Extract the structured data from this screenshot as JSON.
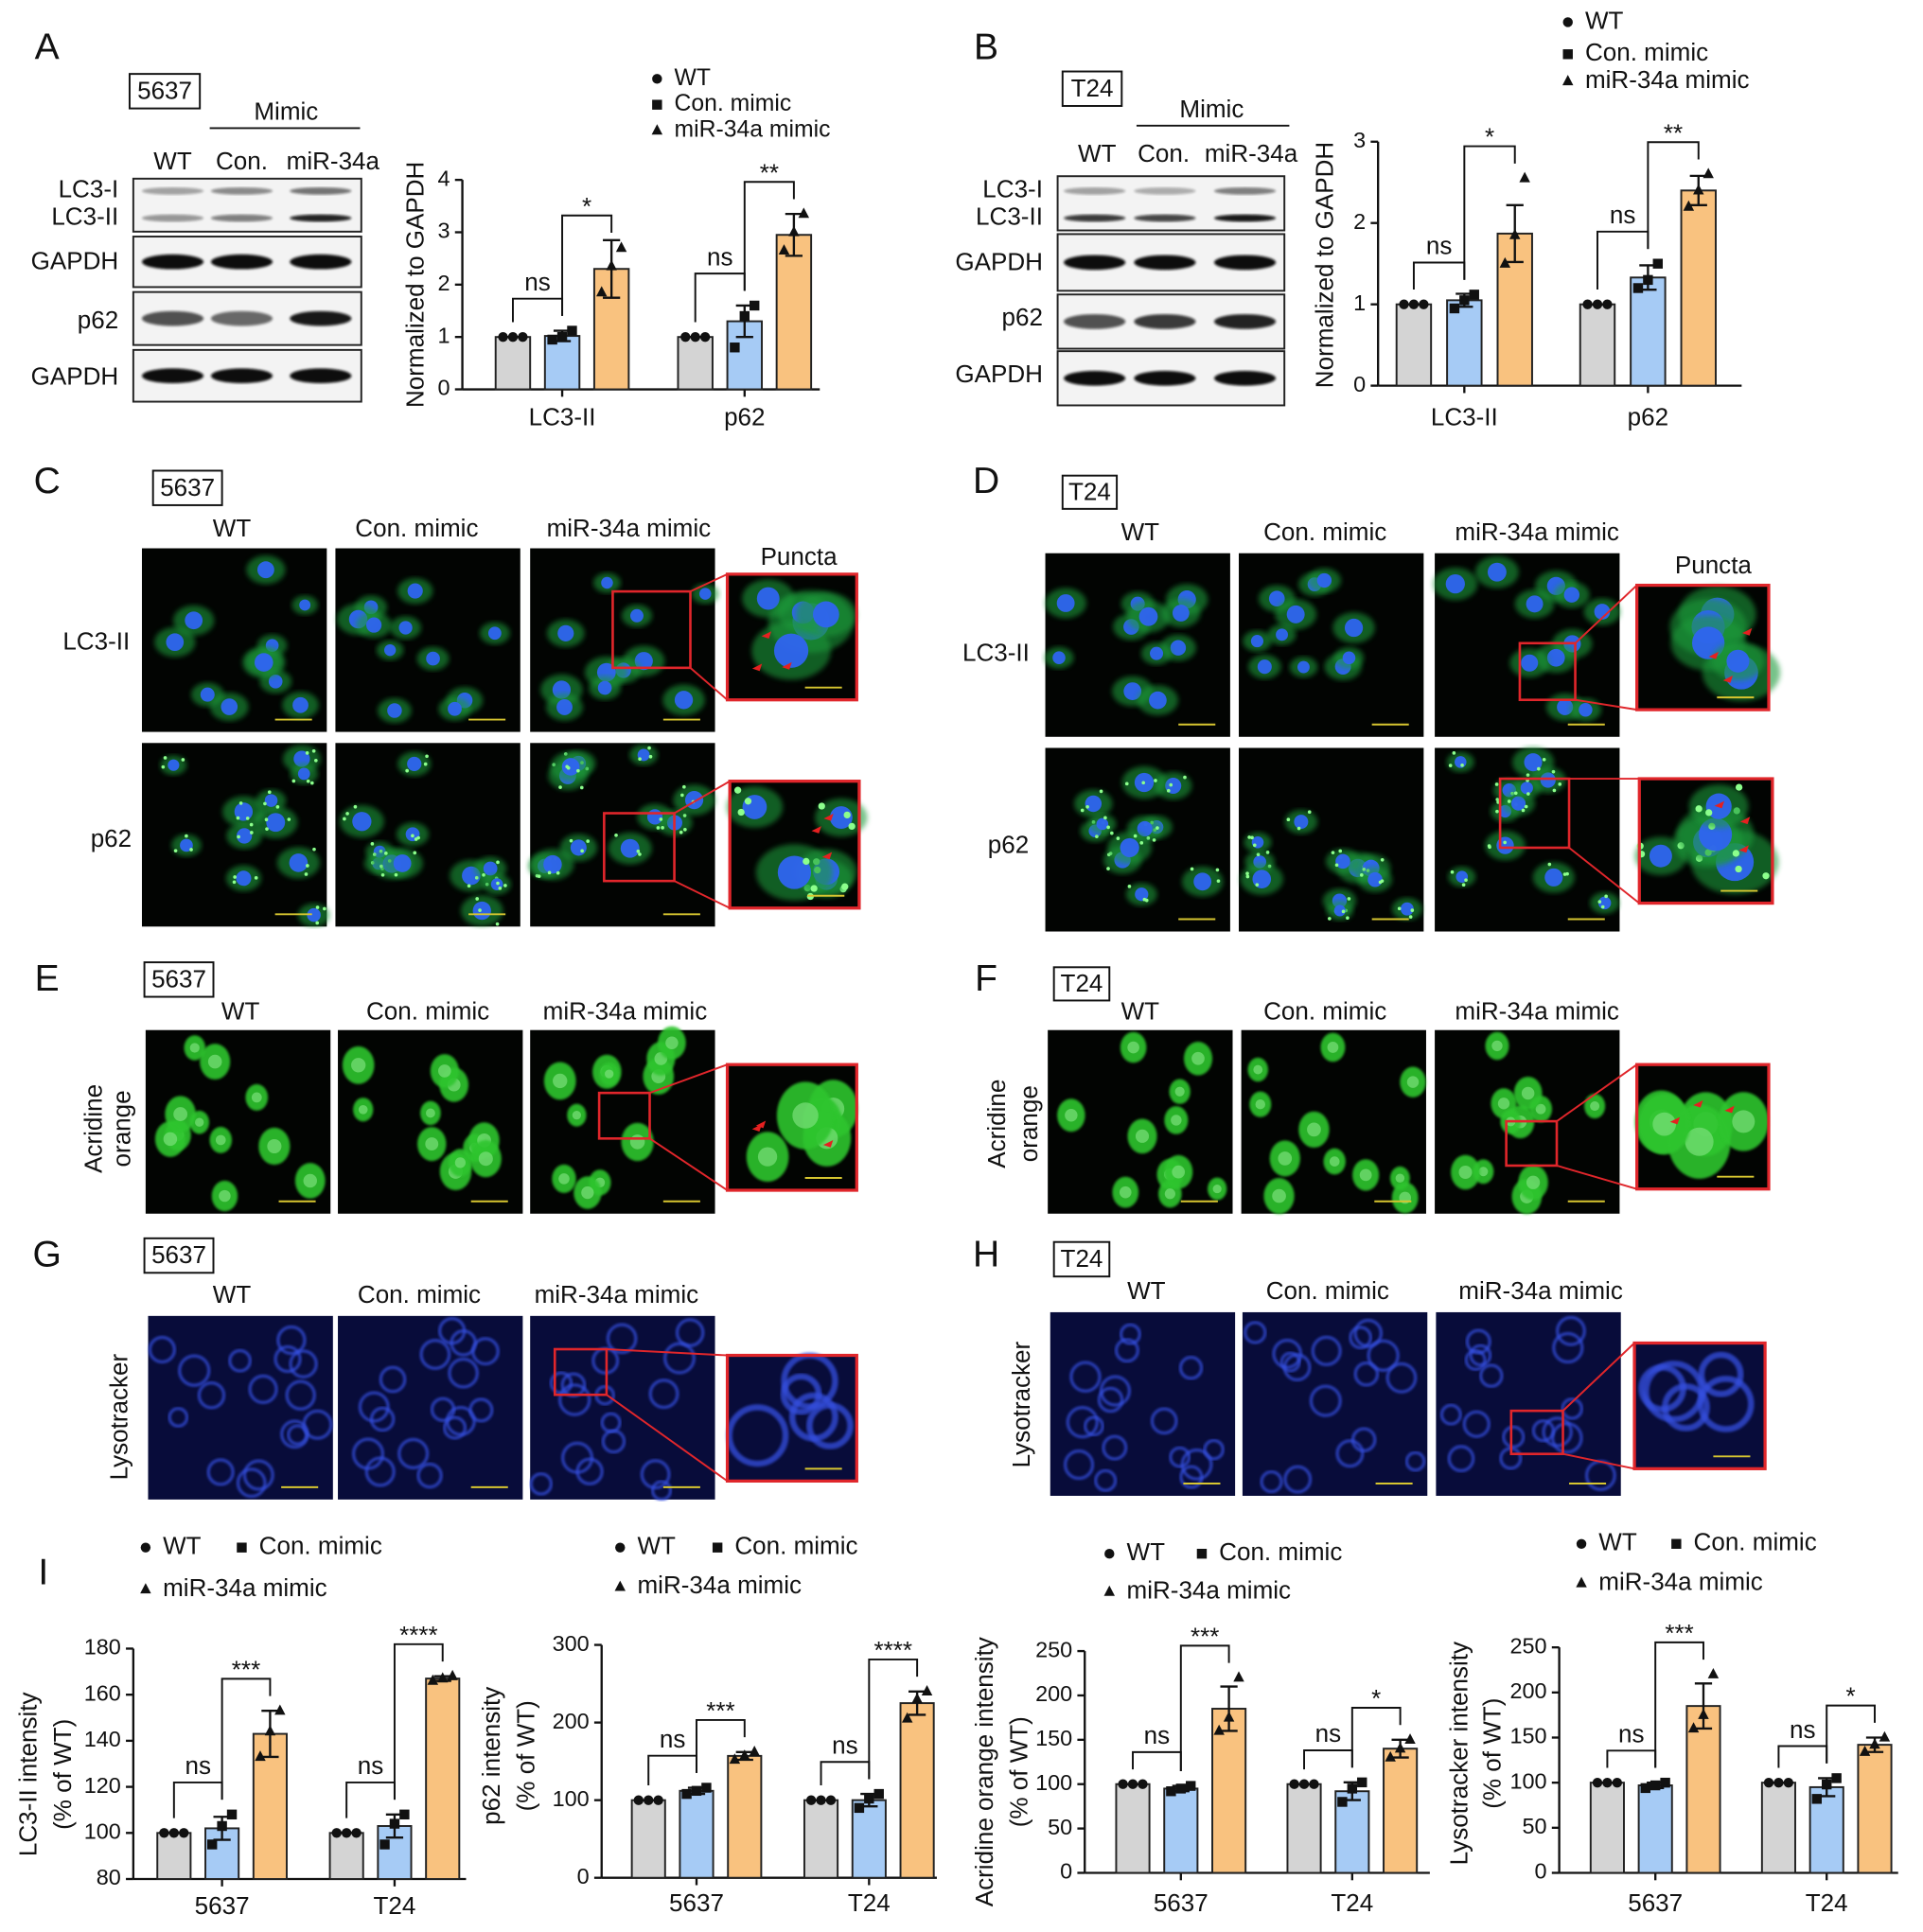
{
  "panels": {
    "A": {
      "label": "A",
      "cell_line": "5637",
      "group": "Mimic",
      "lanes": [
        "WT",
        "Con.",
        "miR-34a"
      ],
      "rows": [
        "LC3-I",
        "LC3-II",
        "GAPDH",
        "p62",
        "GAPDH"
      ]
    },
    "B": {
      "label": "B",
      "cell_line": "T24",
      "group": "Mimic",
      "lanes": [
        "WT",
        "Con.",
        "miR-34a"
      ],
      "rows": [
        "LC3-I",
        "LC3-II",
        "GAPDH",
        "p62",
        "GAPDH"
      ]
    },
    "C": {
      "label": "C",
      "cell_line": "5637",
      "columns": [
        "WT",
        "Con. mimic",
        "miR-34a mimic"
      ],
      "zoom": "Puncta",
      "rows": [
        "LC3-II",
        "p62"
      ]
    },
    "D": {
      "label": "D",
      "cell_line": "T24",
      "columns": [
        "WT",
        "Con. mimic",
        "miR-34a mimic"
      ],
      "zoom": "Puncta",
      "rows": [
        "LC3-II",
        "p62"
      ]
    },
    "E": {
      "label": "E",
      "cell_line": "5637",
      "columns": [
        "WT",
        "Con. mimic",
        "miR-34a mimic"
      ],
      "stain": [
        "Acridine",
        "orange"
      ]
    },
    "F": {
      "label": "F",
      "cell_line": "T24",
      "columns": [
        "WT",
        "Con. mimic",
        "miR-34a mimic"
      ],
      "stain": [
        "Acridine",
        "orange"
      ]
    },
    "G": {
      "label": "G",
      "cell_line": "5637",
      "columns": [
        "WT",
        "Con. mimic",
        "miR-34a mimic"
      ],
      "stain": [
        "Lysotracker"
      ]
    },
    "H": {
      "label": "H",
      "cell_line": "T24",
      "columns": [
        "WT",
        "Con. mimic",
        "miR-34a mimic"
      ],
      "stain": [
        "Lysotracker"
      ]
    },
    "I": {
      "label": "I"
    }
  },
  "chart_data": [
    {
      "type": "bar",
      "ylabel": [
        "Normalized to GAPDH"
      ],
      "categories": [
        "LC3-II",
        "p62"
      ],
      "ylim": [
        0,
        4
      ],
      "yticks": [
        0,
        1,
        2,
        3,
        4
      ],
      "series": [
        {
          "name": "WT",
          "color": "#d4d4d4",
          "label_color": "#9a9a9a",
          "marker": "circle",
          "values": [
            1,
            1
          ],
          "errors": [
            0,
            0
          ],
          "points": [
            [
              1,
              1,
              1
            ],
            [
              1,
              1,
              1
            ]
          ]
        },
        {
          "name": "Con. mimic",
          "color": "#a6cbf5",
          "label_color": "#4ea7f2",
          "marker": "square",
          "values": [
            1.02,
            1.3
          ],
          "errors": [
            0.1,
            0.3
          ],
          "points": [
            [
              0.95,
              1,
              1.12
            ],
            [
              0.8,
              1.4,
              1.6
            ]
          ]
        },
        {
          "name": "miR-34a mimic",
          "color": "#f9c27f",
          "label_color": "#f5a23a",
          "marker": "triangle",
          "values": [
            2.3,
            2.95
          ],
          "errors": [
            0.55,
            0.4
          ],
          "points": [
            [
              1.85,
              2.35,
              2.7
            ],
            [
              2.65,
              3,
              3.35
            ]
          ]
        }
      ],
      "annotations": [
        {
          "text": "ns",
          "category": "LC3-II",
          "between": [
            "WT",
            "Con. mimic"
          ]
        },
        {
          "text": "*",
          "category": "LC3-II",
          "between": [
            "Con. mimic",
            "miR-34a mimic"
          ]
        },
        {
          "text": "ns",
          "category": "p62",
          "between": [
            "WT",
            "Con. mimic"
          ]
        },
        {
          "text": "**",
          "category": "p62",
          "between": [
            "Con. mimic",
            "miR-34a mimic"
          ]
        }
      ]
    },
    {
      "type": "bar",
      "ylabel": [
        "Normalized to GAPDH"
      ],
      "categories": [
        "LC3-II",
        "p62"
      ],
      "ylim": [
        0,
        3
      ],
      "yticks": [
        0,
        1,
        2,
        3
      ],
      "series": [
        {
          "name": "WT",
          "color": "#d4d4d4",
          "label_color": "#9a9a9a",
          "marker": "circle",
          "values": [
            1,
            1
          ],
          "errors": [
            0,
            0
          ],
          "points": [
            [
              1,
              1,
              1
            ],
            [
              1,
              1,
              1
            ]
          ]
        },
        {
          "name": "Con. mimic",
          "color": "#a6cbf5",
          "label_color": "#4ea7f2",
          "marker": "square",
          "values": [
            1.05,
            1.33
          ],
          "errors": [
            0.08,
            0.15
          ],
          "points": [
            [
              0.95,
              1.05,
              1.12
            ],
            [
              1.2,
              1.3,
              1.5
            ]
          ]
        },
        {
          "name": "miR-34a mimic",
          "color": "#f9c27f",
          "label_color": "#f5a23a",
          "marker": "triangle",
          "values": [
            1.87,
            2.4
          ],
          "errors": [
            0.35,
            0.18
          ],
          "points": [
            [
              1.5,
              1.85,
              2.55
            ],
            [
              2.2,
              2.4,
              2.6
            ]
          ]
        }
      ],
      "annotations": [
        {
          "text": "ns",
          "category": "LC3-II",
          "between": [
            "WT",
            "Con. mimic"
          ]
        },
        {
          "text": "*",
          "category": "LC3-II",
          "between": [
            "Con. mimic",
            "miR-34a mimic"
          ]
        },
        {
          "text": "ns",
          "category": "p62",
          "between": [
            "WT",
            "Con. mimic"
          ]
        },
        {
          "text": "**",
          "category": "p62",
          "between": [
            "Con. mimic",
            "miR-34a mimic"
          ]
        }
      ]
    },
    {
      "type": "bar",
      "ylabel": [
        "LC3-II intensity",
        "(% of  WT)"
      ],
      "categories": [
        "5637",
        "T24"
      ],
      "ylim": [
        80,
        180
      ],
      "yticks": [
        80,
        100,
        120,
        140,
        160,
        180
      ],
      "series": [
        {
          "name": "WT",
          "color": "#d4d4d4",
          "label_color": "#9a9a9a",
          "marker": "circle",
          "values": [
            100,
            100
          ],
          "errors": [
            0,
            0
          ],
          "points": [
            [
              100,
              100,
              100
            ],
            [
              100,
              100,
              100
            ]
          ]
        },
        {
          "name": "Con. mimic",
          "color": "#a6cbf5",
          "label_color": "#4ea7f2",
          "marker": "square",
          "values": [
            102,
            103
          ],
          "errors": [
            5,
            5
          ],
          "points": [
            [
              95,
              103,
              108
            ],
            [
              95,
              104,
              108
            ]
          ]
        },
        {
          "name": "miR-34a mimic",
          "color": "#f9c27f",
          "label_color": "#f5a23a",
          "marker": "triangle",
          "values": [
            143,
            167
          ],
          "errors": [
            10,
            1
          ],
          "points": [
            [
              133,
              144,
              153
            ],
            [
              166,
              167,
              168
            ]
          ]
        }
      ],
      "annotations": [
        {
          "text": "ns",
          "category": "5637",
          "between": [
            "WT",
            "Con. mimic"
          ]
        },
        {
          "text": "***",
          "category": "5637",
          "between": [
            "Con. mimic",
            "miR-34a mimic"
          ]
        },
        {
          "text": "ns",
          "category": "T24",
          "between": [
            "WT",
            "Con. mimic"
          ]
        },
        {
          "text": "****",
          "category": "T24",
          "between": [
            "Con. mimic",
            "miR-34a mimic"
          ]
        }
      ]
    },
    {
      "type": "bar",
      "ylabel": [
        "p62 intensity",
        "(% of  WT)"
      ],
      "categories": [
        "5637",
        "T24"
      ],
      "ylim": [
        0,
        300
      ],
      "yticks": [
        0,
        100,
        200,
        300
      ],
      "series": [
        {
          "name": "WT",
          "color": "#d4d4d4",
          "label_color": "#9a9a9a",
          "marker": "circle",
          "values": [
            100,
            100
          ],
          "errors": [
            0,
            0
          ],
          "points": [
            [
              100,
              100,
              100
            ],
            [
              100,
              100,
              100
            ]
          ]
        },
        {
          "name": "Con. mimic",
          "color": "#a6cbf5",
          "label_color": "#4ea7f2",
          "marker": "square",
          "values": [
            112,
            100
          ],
          "errors": [
            4,
            8
          ],
          "points": [
            [
              108,
              112,
              116
            ],
            [
              90,
              102,
              108
            ]
          ]
        },
        {
          "name": "miR-34a mimic",
          "color": "#f9c27f",
          "label_color": "#f5a23a",
          "marker": "triangle",
          "values": [
            157,
            225
          ],
          "errors": [
            5,
            15
          ],
          "points": [
            [
              152,
              157,
              162
            ],
            [
              205,
              230,
              240
            ]
          ]
        }
      ],
      "annotations": [
        {
          "text": "ns",
          "category": "5637",
          "between": [
            "WT",
            "Con. mimic"
          ]
        },
        {
          "text": "***",
          "category": "5637",
          "between": [
            "Con. mimic",
            "miR-34a mimic"
          ]
        },
        {
          "text": "ns",
          "category": "T24",
          "between": [
            "WT",
            "Con. mimic"
          ]
        },
        {
          "text": "****",
          "category": "T24",
          "between": [
            "Con. mimic",
            "miR-34a mimic"
          ]
        }
      ]
    },
    {
      "type": "bar",
      "ylabel": [
        "Acridine orange intensity",
        "(% of  WT)"
      ],
      "categories": [
        "5637",
        "T24"
      ],
      "ylim": [
        0,
        250
      ],
      "yticks": [
        0,
        50,
        100,
        150,
        200,
        250
      ],
      "series": [
        {
          "name": "WT",
          "color": "#d4d4d4",
          "label_color": "#9a9a9a",
          "marker": "circle",
          "values": [
            100,
            100
          ],
          "errors": [
            0,
            0
          ],
          "points": [
            [
              100,
              100,
              100
            ],
            [
              100,
              100,
              100
            ]
          ]
        },
        {
          "name": "Con. mimic",
          "color": "#a6cbf5",
          "label_color": "#4ea7f2",
          "marker": "square",
          "values": [
            95,
            92
          ],
          "errors": [
            3,
            10
          ],
          "points": [
            [
              92,
              95,
              98
            ],
            [
              80,
              95,
              102
            ]
          ]
        },
        {
          "name": "miR-34a mimic",
          "color": "#f9c27f",
          "label_color": "#f5a23a",
          "marker": "triangle",
          "values": [
            185,
            140
          ],
          "errors": [
            25,
            10
          ],
          "points": [
            [
              160,
              175,
              220
            ],
            [
              130,
              140,
              150
            ]
          ]
        }
      ],
      "annotations": [
        {
          "text": "ns",
          "category": "5637",
          "between": [
            "WT",
            "Con. mimic"
          ]
        },
        {
          "text": "***",
          "category": "5637",
          "between": [
            "Con. mimic",
            "miR-34a mimic"
          ]
        },
        {
          "text": "ns",
          "category": "T24",
          "between": [
            "WT",
            "Con. mimic"
          ]
        },
        {
          "text": "*",
          "category": "T24",
          "between": [
            "Con. mimic",
            "miR-34a mimic"
          ]
        }
      ]
    },
    {
      "type": "bar",
      "ylabel": [
        "Lysotracker intensity",
        "(% of  WT)"
      ],
      "categories": [
        "5637",
        "T24"
      ],
      "ylim": [
        0,
        250
      ],
      "yticks": [
        0,
        50,
        100,
        150,
        200,
        250
      ],
      "series": [
        {
          "name": "WT",
          "color": "#d4d4d4",
          "label_color": "#9a9a9a",
          "marker": "circle",
          "values": [
            100,
            100
          ],
          "errors": [
            0,
            0
          ],
          "points": [
            [
              100,
              100,
              100
            ],
            [
              100,
              100,
              100
            ]
          ]
        },
        {
          "name": "Con. mimic",
          "color": "#a6cbf5",
          "label_color": "#4ea7f2",
          "marker": "square",
          "values": [
            97,
            95
          ],
          "errors": [
            3,
            10
          ],
          "points": [
            [
              94,
              97,
              100
            ],
            [
              82,
              98,
              105
            ]
          ]
        },
        {
          "name": "miR-34a mimic",
          "color": "#f9c27f",
          "label_color": "#f5a23a",
          "marker": "triangle",
          "values": [
            185,
            142
          ],
          "errors": [
            25,
            8
          ],
          "points": [
            [
              160,
              175,
              220
            ],
            [
              134,
              142,
              150
            ]
          ]
        }
      ],
      "annotations": [
        {
          "text": "ns",
          "category": "5637",
          "between": [
            "WT",
            "Con. mimic"
          ]
        },
        {
          "text": "***",
          "category": "5637",
          "between": [
            "Con. mimic",
            "miR-34a mimic"
          ]
        },
        {
          "text": "ns",
          "category": "T24",
          "between": [
            "WT",
            "Con. mimic"
          ]
        },
        {
          "text": "*",
          "category": "T24",
          "between": [
            "Con. mimic",
            "miR-34a mimic"
          ]
        }
      ]
    }
  ]
}
